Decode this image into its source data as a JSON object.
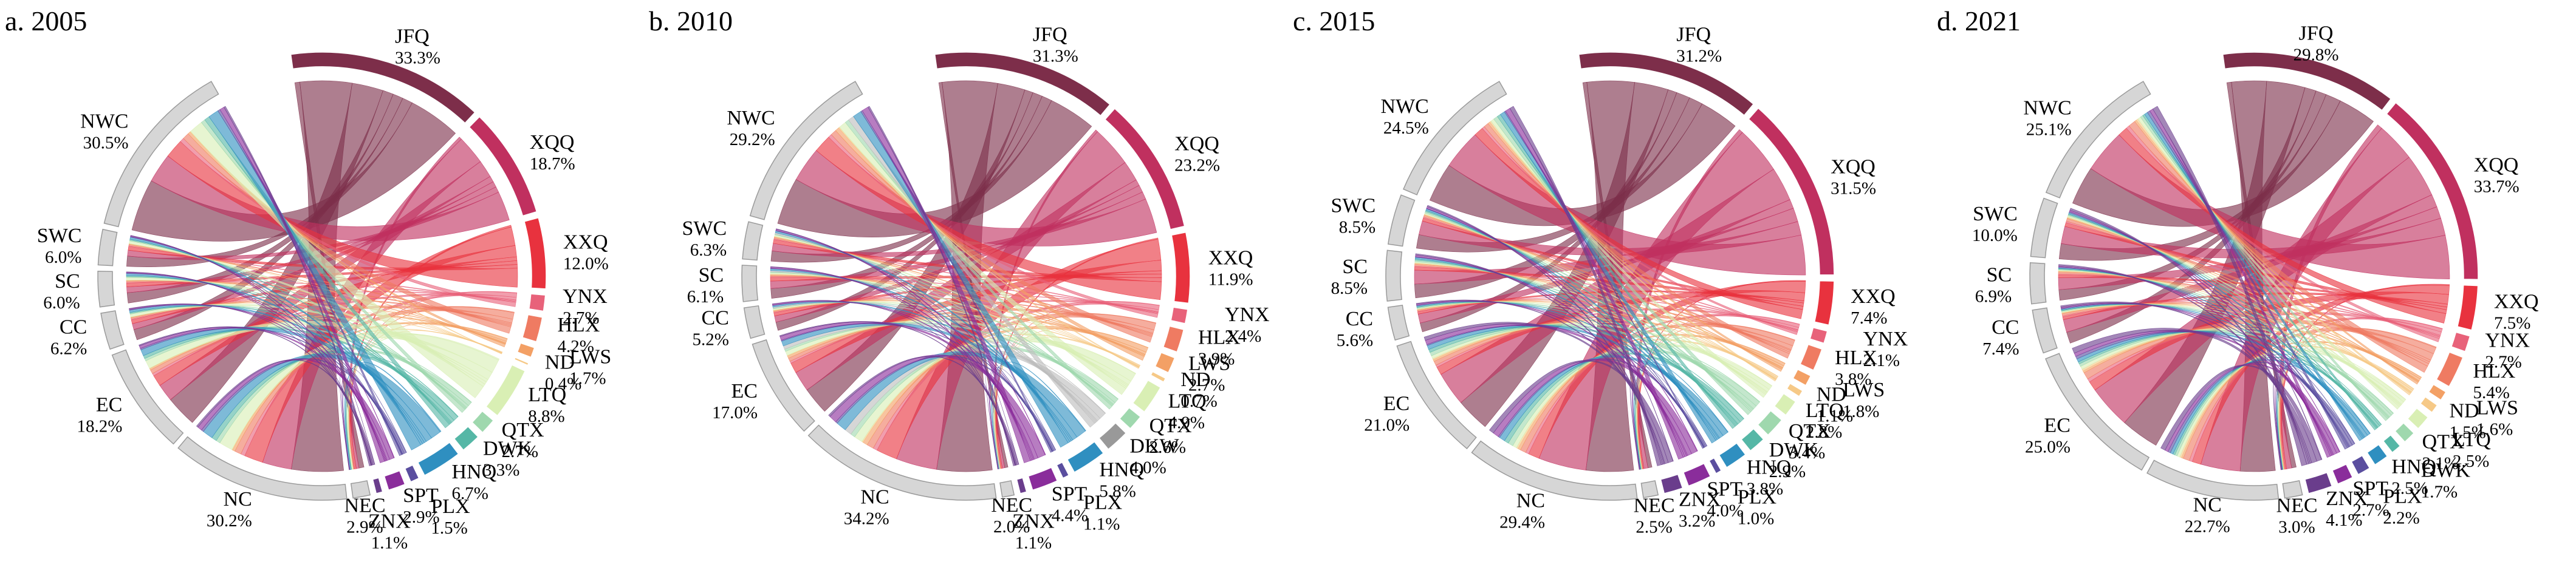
{
  "figure": {
    "description_colors": {
      "JFQ": "#7d2e4a",
      "XQQ": "#c0305f",
      "XXQ": "#e8323e",
      "YNX": "#e8627a",
      "HLX": "#ef7b62",
      "LWS": "#f3a065",
      "ND": "#f6c987",
      "LTQ": "#d9efb4",
      "QTX": "#9fd8ae",
      "DWK": "#55b7a6",
      "HNQ": "#2f8fc0",
      "PLX": "#5a4e9f",
      "SPT": "#8a2d9b",
      "ZNX": "#6a3d8c",
      "NEC": "#c9c9c9",
      "NC": "#c9c9c9",
      "EC": "#c9c9c9",
      "CC": "#c9c9c9",
      "SC": "#c9c9c9",
      "SWC": "#c9c9c9",
      "NWC": "#c9c9c9"
    }
  },
  "chart_data": [
    {
      "type": "chord",
      "title": "a. 2005",
      "sources": [
        {
          "name": "NEC",
          "value": "2.9%"
        },
        {
          "name": "NC",
          "value": "30.2%"
        },
        {
          "name": "EC",
          "value": "18.2%"
        },
        {
          "name": "CC",
          "value": "6.2%"
        },
        {
          "name": "SC",
          "value": "6.0%"
        },
        {
          "name": "SWC",
          "value": "6.0%"
        },
        {
          "name": "NWC",
          "value": "30.5%"
        }
      ],
      "targets": [
        {
          "name": "JFQ",
          "value": "33.3%"
        },
        {
          "name": "XQQ",
          "value": "18.7%"
        },
        {
          "name": "XXQ",
          "value": "12.0%"
        },
        {
          "name": "YNX",
          "value": "2.7%"
        },
        {
          "name": "HLX",
          "value": "4.2%"
        },
        {
          "name": "LWS",
          "value": "1.7%"
        },
        {
          "name": "ND",
          "value": "0.4%"
        },
        {
          "name": "LTQ",
          "value": "8.8%"
        },
        {
          "name": "QTX",
          "value": "2.7%"
        },
        {
          "name": "DWK",
          "value": "3.3%"
        },
        {
          "name": "HNQ",
          "value": "6.7%"
        },
        {
          "name": "PLX",
          "value": "1.5%"
        },
        {
          "name": "SPT",
          "value": "2.9%"
        },
        {
          "name": "ZNX",
          "value": "1.1%"
        }
      ]
    },
    {
      "type": "chord",
      "title": "b. 2010",
      "sources": [
        {
          "name": "NEC",
          "value": "2.0%"
        },
        {
          "name": "NC",
          "value": "34.2%"
        },
        {
          "name": "EC",
          "value": "17.0%"
        },
        {
          "name": "CC",
          "value": "5.2%"
        },
        {
          "name": "SC",
          "value": "6.1%"
        },
        {
          "name": "SWC",
          "value": "6.3%"
        },
        {
          "name": "NWC",
          "value": "29.2%"
        }
      ],
      "targets": [
        {
          "name": "JFQ",
          "value": "31.3%"
        },
        {
          "name": "XQQ",
          "value": "23.2%"
        },
        {
          "name": "XXQ",
          "value": "11.9%"
        },
        {
          "name": "YNX",
          "value": "2.4%"
        },
        {
          "name": "HLX",
          "value": "3.9%"
        },
        {
          "name": "LWS",
          "value": "2.7%"
        },
        {
          "name": "ND",
          "value": "0.7%"
        },
        {
          "name": "LTQ",
          "value": "4.9%"
        },
        {
          "name": "QTX",
          "value": "2.6%"
        },
        {
          "name": "DKW",
          "value": "4.0%"
        },
        {
          "name": "HNQ",
          "value": "5.8%"
        },
        {
          "name": "PLX",
          "value": "1.1%"
        },
        {
          "name": "SPT",
          "value": "4.4%"
        },
        {
          "name": "ZNX",
          "value": "1.1%"
        }
      ]
    },
    {
      "type": "chord",
      "title": "c. 2015",
      "sources": [
        {
          "name": "NEC",
          "value": "2.5%"
        },
        {
          "name": "NC",
          "value": "29.4%"
        },
        {
          "name": "EC",
          "value": "21.0%"
        },
        {
          "name": "CC",
          "value": "5.6%"
        },
        {
          "name": "SC",
          "value": "8.5%"
        },
        {
          "name": "SWC",
          "value": "8.5%"
        },
        {
          "name": "NWC",
          "value": "24.5%"
        }
      ],
      "targets": [
        {
          "name": "JFQ",
          "value": "31.2%"
        },
        {
          "name": "XQQ",
          "value": "31.5%"
        },
        {
          "name": "XXQ",
          "value": "7.4%"
        },
        {
          "name": "YNX",
          "value": "2.1%"
        },
        {
          "name": "HLX",
          "value": "3.8%"
        },
        {
          "name": "LWS",
          "value": "1.8%"
        },
        {
          "name": "ND",
          "value": "1.1%"
        },
        {
          "name": "LTQ",
          "value": "2.8%"
        },
        {
          "name": "QTX",
          "value": "3.4%"
        },
        {
          "name": "DWK",
          "value": "2.9%"
        },
        {
          "name": "HNQ",
          "value": "3.8%"
        },
        {
          "name": "PLX",
          "value": "1.0%"
        },
        {
          "name": "SPT",
          "value": "4.0%"
        },
        {
          "name": "ZNX",
          "value": "3.2%"
        }
      ]
    },
    {
      "type": "chord",
      "title": "d. 2021",
      "sources": [
        {
          "name": "NEC",
          "value": "3.0%"
        },
        {
          "name": "NC",
          "value": "22.7%"
        },
        {
          "name": "EC",
          "value": "25.0%"
        },
        {
          "name": "CC",
          "value": "7.4%"
        },
        {
          "name": "SC",
          "value": "6.9%"
        },
        {
          "name": "SWC",
          "value": "10.0%"
        },
        {
          "name": "NWC",
          "value": "25.1%"
        }
      ],
      "targets": [
        {
          "name": "JFQ",
          "value": "29.8%"
        },
        {
          "name": "XQQ",
          "value": "33.7%"
        },
        {
          "name": "XXQ",
          "value": "7.5%"
        },
        {
          "name": "YNX",
          "value": "2.7%"
        },
        {
          "name": "HLX",
          "value": "5.4%"
        },
        {
          "name": "LWS",
          "value": "1.6%"
        },
        {
          "name": "ND",
          "value": "1.5%"
        },
        {
          "name": "LTQ",
          "value": "2.5%"
        },
        {
          "name": "QTX",
          "value": "2.1%"
        },
        {
          "name": "DWK",
          "value": "1.7%"
        },
        {
          "name": "HNQ",
          "value": "2.5%"
        },
        {
          "name": "PLX",
          "value": "2.2%"
        },
        {
          "name": "SPT",
          "value": "2.7%"
        },
        {
          "name": "ZNX",
          "value": "4.1%"
        }
      ]
    }
  ]
}
